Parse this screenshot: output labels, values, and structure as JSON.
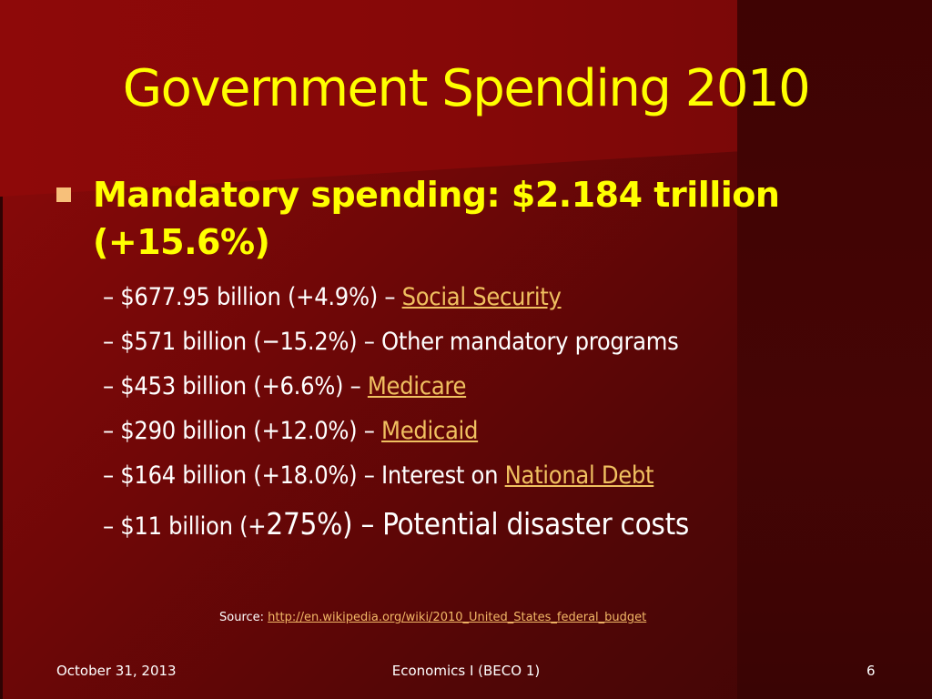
{
  "title": "Government Spending 2010",
  "main_bullet": {
    "line1": "Mandatory spending: $2.184 trillion",
    "line2": "(+15.6%)"
  },
  "sub_items": [
    {
      "dash": "–",
      "prefix": "$677.95 billion (+4.9%) –",
      "link": "Social Security"
    },
    {
      "dash": "–",
      "prefix": "$571 billion (−15.2%) –",
      "text": "Other mandatory programs"
    },
    {
      "dash": "–",
      "prefix": "$453 billion (+6.6%) –",
      "link": "Medicare"
    },
    {
      "dash": "–",
      "prefix": "$290 billion (+12.0%) –",
      "link": "Medicaid"
    },
    {
      "dash": "–",
      "prefix": "$164 billion (+18.0%) – Interest on",
      "link": "National Debt"
    },
    {
      "dash": "–",
      "prefix_small": "$11 billion (+",
      "prefix_big": "275%) – Potential disaster costs"
    }
  ],
  "source": {
    "label": "Source:",
    "url": "http://en.wikipedia.org/wiki/2010_United_States_federal_budget"
  },
  "footer": {
    "date": "October 31, 2013",
    "course": "Economics I (BECO 1)",
    "slide_number": "6"
  },
  "colors": {
    "background": "#700707",
    "title": "#ffff00",
    "link": "#f0c060",
    "bullet": "#f7c07a"
  }
}
